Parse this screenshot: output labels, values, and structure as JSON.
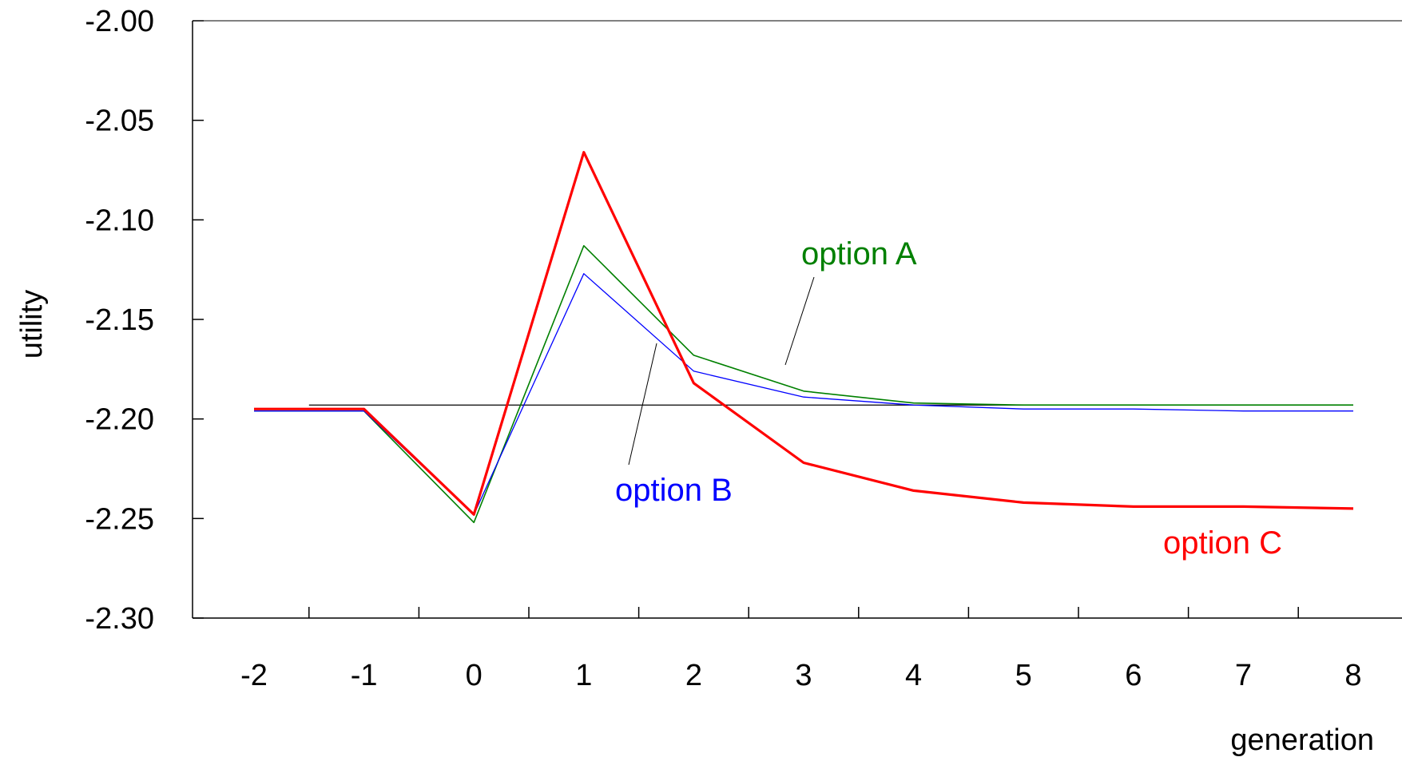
{
  "chart_data": {
    "type": "line",
    "title": "",
    "xlabel": "generation",
    "ylabel": "utility",
    "x": [
      -2,
      -1,
      0,
      1,
      2,
      3,
      4,
      5,
      6,
      7,
      8
    ],
    "x_ticks": [
      "-2",
      "-1",
      "0",
      "1",
      "2",
      "3",
      "4",
      "5",
      "6",
      "7",
      "8"
    ],
    "y_ticks": [
      "-2.00",
      "-2.05",
      "-2.10",
      "-2.15",
      "-2.20",
      "-2.25",
      "-2.30"
    ],
    "ylim": [
      -2.3,
      -2.0
    ],
    "grid": false,
    "series": [
      {
        "name": "option A",
        "color": "#008000",
        "values": [
          -2.196,
          -2.196,
          -2.252,
          -2.113,
          -2.168,
          -2.186,
          -2.192,
          -2.193,
          -2.193,
          -2.193,
          -2.193
        ]
      },
      {
        "name": "option B",
        "color": "#0000ff",
        "values": [
          -2.196,
          -2.196,
          -2.248,
          -2.127,
          -2.176,
          -2.189,
          -2.193,
          -2.195,
          -2.195,
          -2.196,
          -2.196
        ]
      },
      {
        "name": "option C",
        "color": "#ff0000",
        "values": [
          -2.195,
          -2.195,
          -2.248,
          -2.066,
          -2.182,
          -2.222,
          -2.236,
          -2.242,
          -2.244,
          -2.244,
          -2.245
        ]
      }
    ],
    "reference_line": {
      "value": -2.193,
      "x_range": [
        -1.5,
        8
      ],
      "color": "#000000"
    }
  }
}
